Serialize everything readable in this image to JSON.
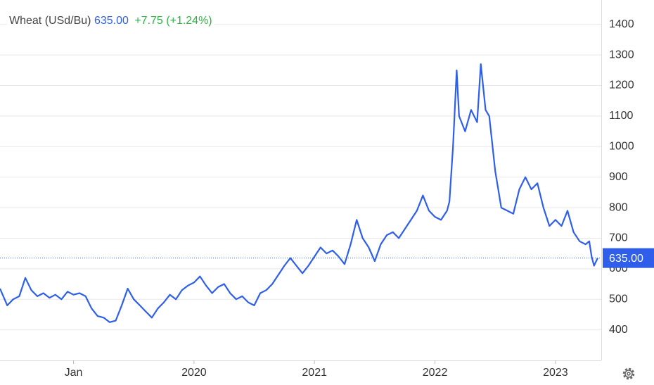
{
  "chart_data": {
    "type": "line",
    "title": "Wheat (USd/Bu)",
    "price_line": {
      "value": 635,
      "label": "635.00"
    },
    "change": "+7.75",
    "change_pct": "(+1.24%)",
    "x": [
      2018.39,
      2018.45,
      2018.5,
      2018.55,
      2018.6,
      2018.65,
      2018.7,
      2018.75,
      2018.8,
      2018.85,
      2018.9,
      2018.95,
      2019.0,
      2019.05,
      2019.1,
      2019.15,
      2019.2,
      2019.25,
      2019.3,
      2019.35,
      2019.4,
      2019.45,
      2019.5,
      2019.55,
      2019.6,
      2019.65,
      2019.7,
      2019.75,
      2019.8,
      2019.85,
      2019.9,
      2019.95,
      2020.0,
      2020.05,
      2020.1,
      2020.15,
      2020.2,
      2020.25,
      2020.3,
      2020.35,
      2020.4,
      2020.45,
      2020.5,
      2020.55,
      2020.6,
      2020.65,
      2020.7,
      2020.75,
      2020.8,
      2020.85,
      2020.9,
      2020.95,
      2021.0,
      2021.05,
      2021.1,
      2021.15,
      2021.2,
      2021.25,
      2021.3,
      2021.35,
      2021.4,
      2021.45,
      2021.5,
      2021.55,
      2021.6,
      2021.65,
      2021.7,
      2021.75,
      2021.8,
      2021.85,
      2021.9,
      2021.95,
      2022.0,
      2022.05,
      2022.1,
      2022.12,
      2022.15,
      2022.18,
      2022.2,
      2022.25,
      2022.3,
      2022.35,
      2022.38,
      2022.42,
      2022.45,
      2022.5,
      2022.55,
      2022.6,
      2022.65,
      2022.7,
      2022.75,
      2022.8,
      2022.85,
      2022.9,
      2022.95,
      2023.0,
      2023.05,
      2023.1,
      2023.15,
      2023.2,
      2023.25,
      2023.28,
      2023.3,
      2023.32,
      2023.35
    ],
    "series": [
      {
        "name": "Wheat",
        "color": "#2f5fea",
        "values": [
          535,
          480,
          500,
          510,
          570,
          530,
          510,
          520,
          505,
          515,
          500,
          525,
          515,
          520,
          510,
          470,
          445,
          440,
          425,
          430,
          480,
          535,
          500,
          480,
          460,
          440,
          470,
          490,
          515,
          500,
          530,
          545,
          555,
          575,
          545,
          520,
          540,
          550,
          520,
          500,
          510,
          490,
          480,
          520,
          530,
          550,
          580,
          610,
          635,
          610,
          585,
          610,
          640,
          670,
          650,
          660,
          640,
          615,
          680,
          760,
          700,
          670,
          625,
          680,
          710,
          720,
          700,
          730,
          760,
          790,
          840,
          790,
          770,
          760,
          790,
          820,
          1000,
          1250,
          1100,
          1050,
          1120,
          1080,
          1270,
          1120,
          1100,
          920,
          800,
          790,
          780,
          860,
          900,
          860,
          880,
          800,
          740,
          760,
          740,
          790,
          720,
          690,
          680,
          690,
          640,
          610,
          635
        ]
      }
    ],
    "xlim": [
      2018.39,
      2023.38
    ],
    "ylim": [
      300,
      1480
    ],
    "xticks": [
      {
        "value": 2019,
        "label": "Jan"
      },
      2020,
      2021,
      2022,
      2023
    ],
    "yticks": [
      400,
      500,
      600,
      700,
      800,
      900,
      1000,
      1100,
      1200,
      1300,
      1400
    ],
    "grid": true
  }
}
